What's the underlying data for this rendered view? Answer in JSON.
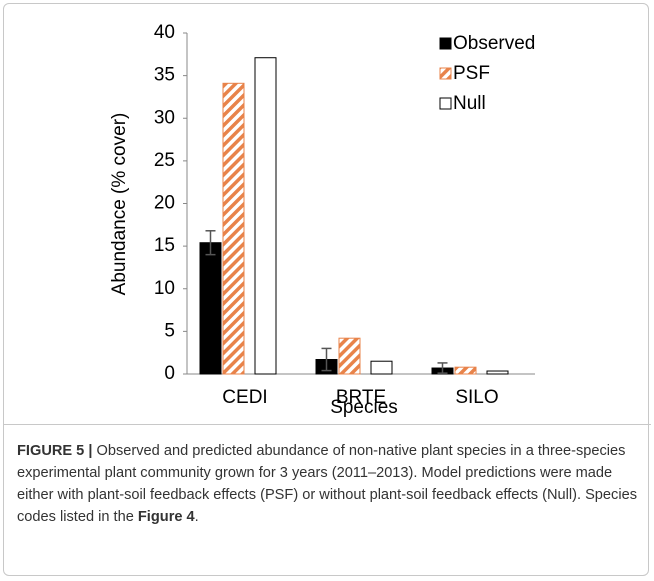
{
  "chart_data": {
    "type": "bar",
    "y_label": "Abundance (% cover)",
    "x_label": "Species",
    "categories": [
      "CEDI",
      "BRTE",
      "SILO"
    ],
    "series": [
      {
        "name": "Observed",
        "color": "#000000",
        "values": [
          15.4,
          1.7,
          0.7
        ],
        "errors": [
          1.4,
          1.3,
          0.6
        ]
      },
      {
        "name": "PSF",
        "color": "#e8834a",
        "values": [
          34.1,
          4.2,
          0.8
        ]
      },
      {
        "name": "Null",
        "color": "#ffffff",
        "values": [
          37.1,
          1.5,
          0.35
        ]
      }
    ],
    "ylim": [
      0,
      40
    ],
    "yticks": [
      0,
      5,
      10,
      15,
      20,
      25,
      30,
      35,
      40
    ],
    "legend": "upper right"
  },
  "caption": {
    "label": "FIGURE 5 |",
    "text": " Observed and predicted abundance of non-native plant species in a three-species experimental plant community grown for 3 years (2011–2013). Model predictions were made either with plant-soil feedback effects (PSF) or without plant-soil feedback effects (Null). Species codes listed in the ",
    "ref": "Figure 4",
    "end": "."
  }
}
